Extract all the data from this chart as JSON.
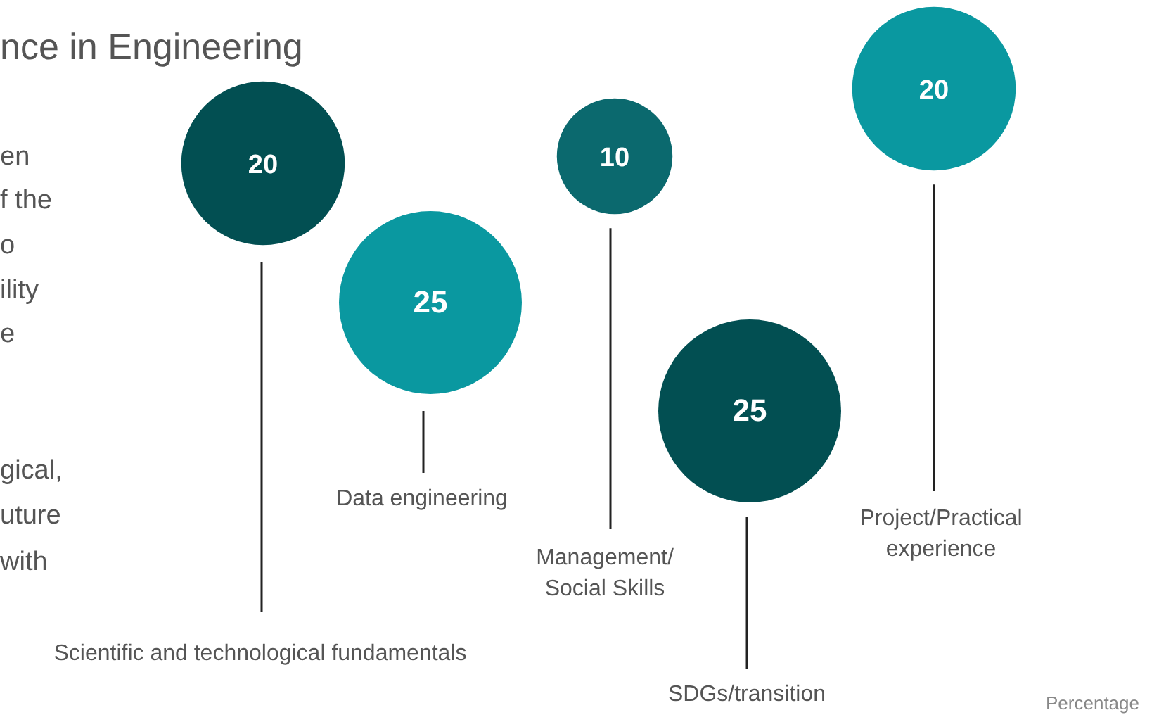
{
  "chart_data": {
    "type": "other",
    "subtitle": "nce in Engineering",
    "categories": [
      "Scientific and technological fundamentals",
      "Data engineering",
      "Management/\nSocial Skills",
      "SDGs/transition",
      "Project/Practical\nexperience"
    ],
    "values": [
      20,
      25,
      10,
      25,
      20
    ],
    "colors": [
      "#024f52",
      "#0a98a0",
      "#0b696e",
      "#024f52",
      "#0a98a0"
    ],
    "data_labels": true,
    "annotations": [
      "en",
      "f the",
      "o",
      "ility",
      "e",
      "gical,",
      "uture",
      "with",
      "Percentage"
    ]
  }
}
